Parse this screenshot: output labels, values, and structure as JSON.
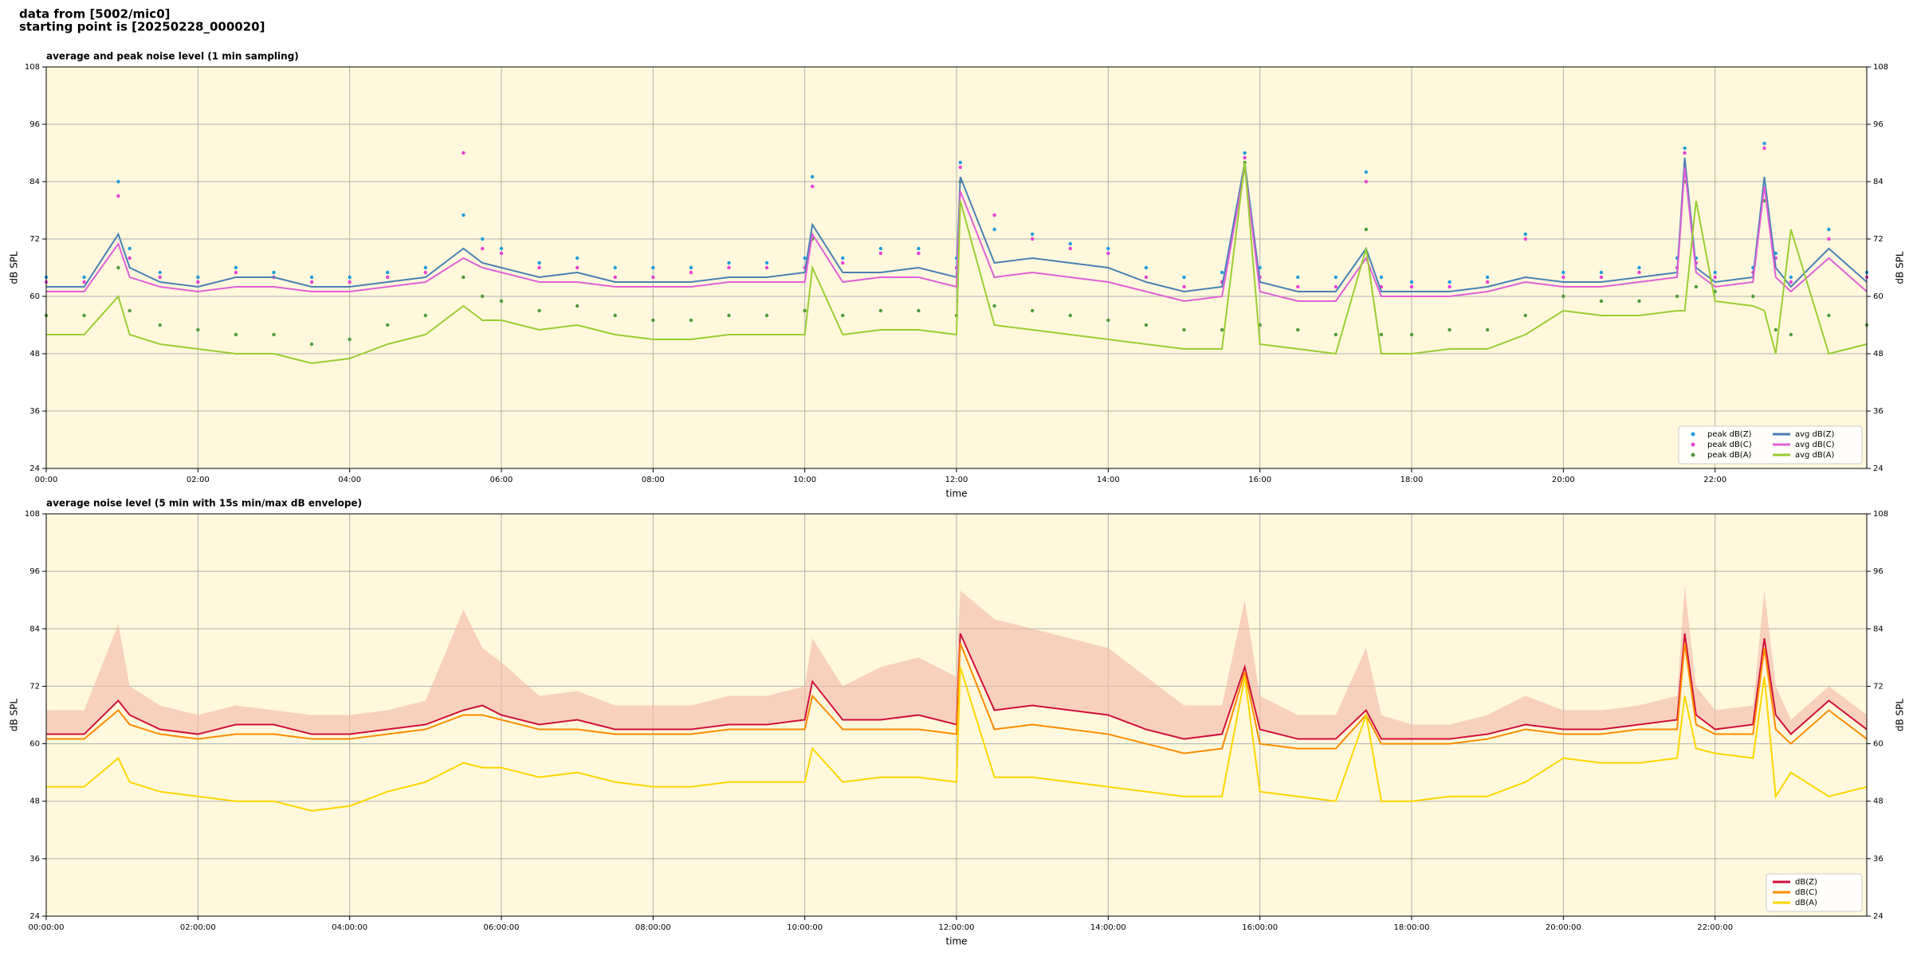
{
  "header": [
    "data from [5002/mic0]",
    "starting point is [20250228_000020]"
  ],
  "chart_data": [
    {
      "type": "line",
      "title": "average and peak noise level (1 min sampling)",
      "xlabel": "time",
      "ylabel": "dB SPL",
      "x": [
        0,
        0.5,
        0.95,
        1.1,
        1.5,
        2,
        2.5,
        3,
        3.5,
        4,
        4.5,
        5,
        5.5,
        5.75,
        6,
        6.5,
        7,
        7.5,
        8,
        8.5,
        9,
        9.5,
        10,
        10.1,
        10.5,
        11,
        11.5,
        12,
        12.05,
        12.5,
        13,
        13.5,
        14,
        14.5,
        15,
        15.5,
        15.8,
        16,
        16.5,
        17,
        17.4,
        17.6,
        18,
        18.5,
        19,
        19.5,
        20,
        20.5,
        21,
        21.5,
        21.6,
        21.75,
        22,
        22.5,
        22.65,
        22.8,
        23,
        23.5,
        24
      ],
      "xlim": [
        0,
        24
      ],
      "xticks": [
        {
          "value": 0,
          "label": "00:00"
        },
        {
          "value": 2,
          "label": "02:00"
        },
        {
          "value": 4,
          "label": "04:00"
        },
        {
          "value": 6,
          "label": "06:00"
        },
        {
          "value": 8,
          "label": "08:00"
        },
        {
          "value": 10,
          "label": "10:00"
        },
        {
          "value": 12,
          "label": "12:00"
        },
        {
          "value": 14,
          "label": "14:00"
        },
        {
          "value": 16,
          "label": "16:00"
        },
        {
          "value": 18,
          "label": "18:00"
        },
        {
          "value": 20,
          "label": "20:00"
        },
        {
          "value": 22,
          "label": "22:00"
        }
      ],
      "ylim": [
        24,
        108
      ],
      "yticks": [
        24,
        36,
        48,
        60,
        72,
        84,
        96,
        108
      ],
      "grid": true,
      "legend": "lower right",
      "legend_columns": 2,
      "series": [
        {
          "name": "peak dB(Z)",
          "color": "#1f9bdf",
          "style": "points",
          "values": [
            64,
            64,
            84,
            70,
            65,
            64,
            66,
            65,
            64,
            64,
            65,
            66,
            77,
            72,
            70,
            67,
            68,
            66,
            66,
            66,
            67,
            67,
            68,
            85,
            68,
            70,
            70,
            68,
            88,
            74,
            73,
            71,
            70,
            66,
            64,
            65,
            90,
            66,
            64,
            64,
            86,
            64,
            63,
            63,
            64,
            73,
            65,
            65,
            66,
            68,
            91,
            68,
            65,
            66,
            92,
            69,
            64,
            74,
            65
          ]
        },
        {
          "name": "peak dB(C)",
          "color": "#e83fd6",
          "style": "points",
          "values": [
            63,
            63,
            81,
            68,
            64,
            63,
            65,
            64,
            63,
            63,
            64,
            65,
            90,
            70,
            69,
            66,
            66,
            64,
            64,
            65,
            66,
            66,
            66,
            83,
            67,
            69,
            69,
            66,
            87,
            77,
            72,
            70,
            69,
            64,
            62,
            63,
            89,
            64,
            62,
            62,
            84,
            62,
            62,
            62,
            63,
            72,
            64,
            64,
            65,
            66,
            90,
            67,
            64,
            65,
            91,
            68,
            63,
            72,
            64
          ]
        },
        {
          "name": "peak dB(A)",
          "color": "#4f9a3a",
          "style": "points",
          "values": [
            56,
            56,
            66,
            57,
            54,
            53,
            52,
            52,
            50,
            51,
            54,
            56,
            64,
            60,
            59,
            57,
            58,
            56,
            55,
            55,
            56,
            56,
            57,
            72,
            56,
            57,
            57,
            56,
            84,
            58,
            57,
            56,
            55,
            54,
            53,
            53,
            88,
            54,
            53,
            52,
            74,
            52,
            52,
            53,
            53,
            56,
            60,
            59,
            59,
            60,
            84,
            62,
            61,
            60,
            80,
            53,
            52,
            56,
            54
          ]
        },
        {
          "name": "avg dB(Z)",
          "color": "#4a7fb5",
          "style": "line",
          "values": [
            62,
            62,
            73,
            66,
            63,
            62,
            64,
            64,
            62,
            62,
            63,
            64,
            70,
            67,
            66,
            64,
            65,
            63,
            63,
            63,
            64,
            64,
            65,
            75,
            65,
            65,
            66,
            64,
            85,
            67,
            68,
            67,
            66,
            63,
            61,
            62,
            88,
            63,
            61,
            61,
            70,
            61,
            61,
            61,
            62,
            64,
            63,
            63,
            64,
            65,
            89,
            66,
            63,
            64,
            85,
            66,
            62,
            70,
            63
          ]
        },
        {
          "name": "avg dB(C)",
          "color": "#e060d8",
          "style": "line",
          "values": [
            61,
            61,
            71,
            64,
            62,
            61,
            62,
            62,
            61,
            61,
            62,
            63,
            68,
            66,
            65,
            63,
            63,
            62,
            62,
            62,
            63,
            63,
            63,
            73,
            63,
            64,
            64,
            62,
            82,
            64,
            65,
            64,
            63,
            61,
            59,
            60,
            87,
            61,
            59,
            59,
            68,
            60,
            60,
            60,
            61,
            63,
            62,
            62,
            63,
            64,
            87,
            65,
            62,
            63,
            83,
            64,
            61,
            68,
            61
          ]
        },
        {
          "name": "avg dB(A)",
          "color": "#9acd32",
          "style": "line",
          "values": [
            52,
            52,
            60,
            52,
            50,
            49,
            48,
            48,
            46,
            47,
            50,
            52,
            58,
            55,
            55,
            53,
            54,
            52,
            51,
            51,
            52,
            52,
            52,
            66,
            52,
            53,
            53,
            52,
            80,
            54,
            53,
            52,
            51,
            50,
            49,
            49,
            88,
            50,
            49,
            48,
            70,
            48,
            48,
            49,
            49,
            52,
            57,
            56,
            56,
            57,
            57,
            80,
            59,
            58,
            57,
            48,
            74,
            48,
            50
          ]
        }
      ]
    },
    {
      "type": "line",
      "title": "average noise level (5 min with 15s min/max dB envelope)",
      "xlabel": "time",
      "ylabel": "dB SPL",
      "x": [
        0,
        0.5,
        0.95,
        1.1,
        1.5,
        2,
        2.5,
        3,
        3.5,
        4,
        4.5,
        5,
        5.5,
        5.75,
        6,
        6.5,
        7,
        7.5,
        8,
        8.5,
        9,
        9.5,
        10,
        10.1,
        10.5,
        11,
        11.5,
        12,
        12.05,
        12.5,
        13,
        13.5,
        14,
        14.5,
        15,
        15.5,
        15.8,
        16,
        16.5,
        17,
        17.4,
        17.6,
        18,
        18.5,
        19,
        19.5,
        20,
        20.5,
        21,
        21.5,
        21.6,
        21.75,
        22,
        22.5,
        22.65,
        22.8,
        23,
        23.5,
        24
      ],
      "xlim": [
        0,
        24
      ],
      "xticks": [
        {
          "value": 0,
          "label": "00:00:00"
        },
        {
          "value": 2,
          "label": "02:00:00"
        },
        {
          "value": 4,
          "label": "04:00:00"
        },
        {
          "value": 6,
          "label": "06:00:00"
        },
        {
          "value": 8,
          "label": "08:00:00"
        },
        {
          "value": 10,
          "label": "10:00:00"
        },
        {
          "value": 12,
          "label": "12:00:00"
        },
        {
          "value": 14,
          "label": "14:00:00"
        },
        {
          "value": 16,
          "label": "16:00:00"
        },
        {
          "value": 18,
          "label": "18:00:00"
        },
        {
          "value": 20,
          "label": "20:00:00"
        },
        {
          "value": 22,
          "label": "22:00:00"
        }
      ],
      "ylim": [
        24,
        108
      ],
      "yticks": [
        24,
        36,
        48,
        60,
        72,
        84,
        96,
        108
      ],
      "grid": true,
      "legend": "lower right",
      "legend_columns": 1,
      "envelope": {
        "color": "#f4b8a8",
        "values": [
          67,
          67,
          85,
          72,
          68,
          66,
          68,
          67,
          66,
          66,
          67,
          69,
          88,
          80,
          77,
          70,
          71,
          68,
          68,
          68,
          70,
          70,
          72,
          82,
          72,
          76,
          78,
          74,
          92,
          86,
          84,
          82,
          80,
          74,
          68,
          68,
          90,
          70,
          66,
          66,
          80,
          66,
          64,
          64,
          66,
          70,
          67,
          67,
          68,
          70,
          93,
          72,
          67,
          68,
          92,
          72,
          65,
          72,
          66
        ]
      },
      "series": [
        {
          "name": "dB(Z)",
          "color": "#d0103a",
          "style": "line",
          "values": [
            62,
            62,
            69,
            66,
            63,
            62,
            64,
            64,
            62,
            62,
            63,
            64,
            67,
            68,
            66,
            64,
            65,
            63,
            63,
            63,
            64,
            64,
            65,
            73,
            65,
            65,
            66,
            64,
            83,
            67,
            68,
            67,
            66,
            63,
            61,
            62,
            76,
            63,
            61,
            61,
            67,
            61,
            61,
            61,
            62,
            64,
            63,
            63,
            64,
            65,
            83,
            66,
            63,
            64,
            82,
            66,
            62,
            69,
            63
          ]
        },
        {
          "name": "dB(C)",
          "color": "#ff8c00",
          "style": "line",
          "values": [
            61,
            61,
            67,
            64,
            62,
            61,
            62,
            62,
            61,
            61,
            62,
            63,
            66,
            66,
            65,
            63,
            63,
            62,
            62,
            62,
            63,
            63,
            63,
            70,
            63,
            63,
            63,
            62,
            81,
            63,
            64,
            63,
            62,
            60,
            58,
            59,
            75,
            60,
            59,
            59,
            66,
            60,
            60,
            60,
            61,
            63,
            62,
            62,
            63,
            63,
            81,
            64,
            62,
            62,
            80,
            63,
            60,
            67,
            61
          ]
        },
        {
          "name": "dB(A)",
          "color": "#ffd700",
          "style": "line",
          "values": [
            51,
            51,
            57,
            52,
            50,
            49,
            48,
            48,
            46,
            47,
            50,
            52,
            56,
            55,
            55,
            53,
            54,
            52,
            51,
            51,
            52,
            52,
            52,
            59,
            52,
            53,
            53,
            52,
            76,
            53,
            53,
            52,
            51,
            50,
            49,
            49,
            74,
            50,
            49,
            48,
            66,
            48,
            48,
            49,
            49,
            52,
            57,
            56,
            56,
            57,
            70,
            59,
            58,
            57,
            74,
            49,
            54,
            49,
            51
          ]
        }
      ]
    }
  ]
}
